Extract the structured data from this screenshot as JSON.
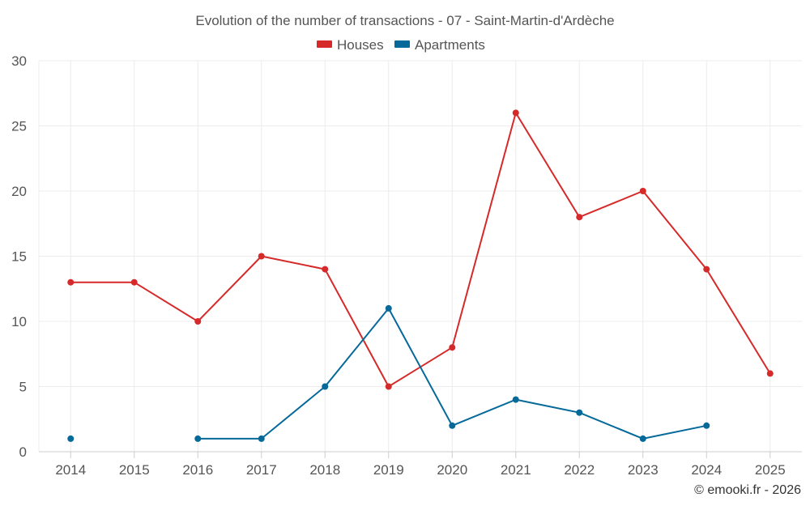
{
  "chart_data": {
    "type": "line",
    "title": "Evolution of the number of transactions - 07 - Saint-Martin-d'Ardèche",
    "xlabel": "",
    "ylabel": "",
    "categories": [
      "2014",
      "2015",
      "2016",
      "2017",
      "2018",
      "2019",
      "2020",
      "2021",
      "2022",
      "2023",
      "2024",
      "2025"
    ],
    "ylim": [
      0,
      30
    ],
    "yticks": [
      0,
      5,
      10,
      15,
      20,
      25,
      30
    ],
    "grid": true,
    "legend_position": "top-center",
    "series": [
      {
        "name": "Houses",
        "color": "#d62a2a",
        "values": [
          13,
          13,
          10,
          15,
          14,
          5,
          8,
          26,
          18,
          20,
          14,
          6
        ]
      },
      {
        "name": "Apartments",
        "color": "#05699a",
        "values": [
          1,
          null,
          1,
          1,
          5,
          11,
          2,
          4,
          3,
          1,
          2,
          null
        ]
      }
    ],
    "credit": "© emooki.fr - 2026"
  }
}
